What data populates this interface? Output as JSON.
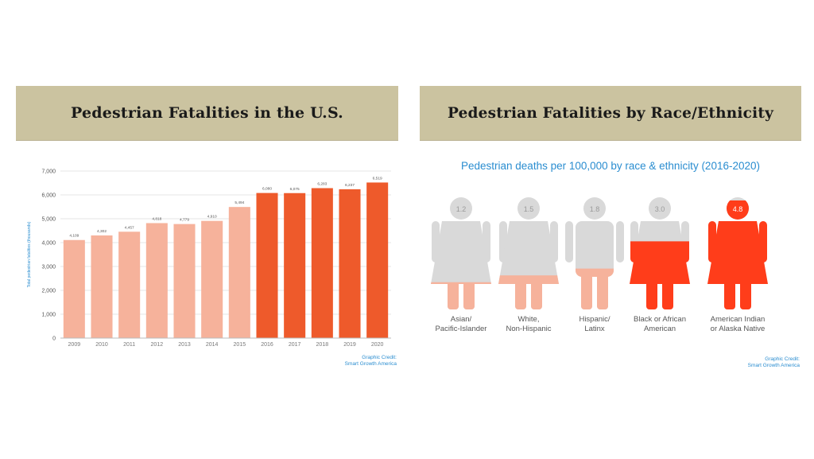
{
  "left_panel": {
    "title": "Pedestrian Fatalities in the U.S.",
    "credit_line1": "Graphic Credit:",
    "credit_line2": "Smart Growth America"
  },
  "right_panel": {
    "title": "Pedestrian Fatalities by Race/Ethnicity",
    "credit_line1": "Graphic Credit:",
    "credit_line2": "Smart Growth America"
  },
  "chart_data": [
    {
      "type": "bar",
      "title": "Pedestrian Fatalities in the U.S.",
      "ylabel": "Total pedestrian fatalities (thousands)",
      "categories": [
        "2009",
        "2010",
        "2011",
        "2012",
        "2013",
        "2014",
        "2015",
        "2016",
        "2017",
        "2018",
        "2019",
        "2020"
      ],
      "values": [
        4109,
        4302,
        4457,
        4818,
        4779,
        4910,
        5494,
        6080,
        6075,
        6283,
        6237,
        6519
      ],
      "value_labels": [
        "4,109",
        "4,302",
        "4,457",
        "4,818",
        "4,779",
        "4,910",
        "5,494",
        "6,080",
        "6,075",
        "6,283",
        "6,237",
        "6,519"
      ],
      "ylim": [
        0,
        7000
      ],
      "yticks": [
        "0",
        "1,000",
        "2,000",
        "3,000",
        "4,000",
        "5,000",
        "6,000",
        "7,000"
      ],
      "grid": true,
      "colors": {
        "2009-2015": "#f6b29b",
        "2016-2020": "#ee5a2b"
      }
    },
    {
      "type": "bar",
      "title": "Pedestrian deaths per 100,000 by race & ethnicity (2016-2020)",
      "categories": [
        [
          "Asian/",
          "Pacific-Islander"
        ],
        [
          "White,",
          "Non-Hispanic"
        ],
        [
          "Hispanic/",
          "Latinx"
        ],
        [
          "Black or African",
          "American"
        ],
        [
          "American Indian",
          "or Alaska Native"
        ]
      ],
      "values": [
        1.2,
        1.5,
        1.8,
        3.0,
        4.8
      ],
      "value_labels": [
        "1.2",
        "1.5",
        "1.8",
        "3.0",
        "4.8"
      ],
      "max": 4.8,
      "colors": {
        "empty": "#d9d9d9",
        "fill_low": "#f6b29b",
        "fill_high": "#ff3d1a",
        "label_dark": "#9a9a9a",
        "label_light": "#ffffff"
      }
    }
  ]
}
